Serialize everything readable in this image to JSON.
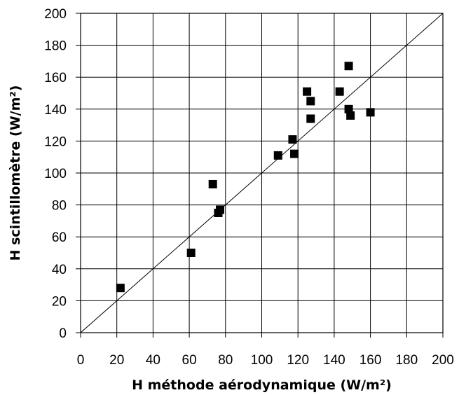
{
  "chart_data": {
    "type": "scatter",
    "xlabel": "H méthode aérodynamique (W/m²)",
    "ylabel": "H scintillomètre (W/m²)",
    "xlim": [
      0,
      200
    ],
    "ylim": [
      0,
      200
    ],
    "x_ticks": [
      "0",
      "20",
      "40",
      "60",
      "80",
      "100",
      "120",
      "140",
      "160",
      "180",
      "200"
    ],
    "y_ticks": [
      "0",
      "20",
      "40",
      "60",
      "80",
      "100",
      "120",
      "140",
      "160",
      "180",
      "200"
    ],
    "grid": true,
    "reference_line": {
      "type": "1:1",
      "from": [
        0,
        0
      ],
      "to": [
        200,
        200
      ]
    },
    "marker": {
      "shape": "square",
      "color": "#000000"
    },
    "points": [
      {
        "x": 22,
        "y": 28
      },
      {
        "x": 61,
        "y": 50
      },
      {
        "x": 73,
        "y": 93
      },
      {
        "x": 76,
        "y": 75
      },
      {
        "x": 77,
        "y": 77
      },
      {
        "x": 109,
        "y": 111
      },
      {
        "x": 117,
        "y": 121
      },
      {
        "x": 118,
        "y": 112
      },
      {
        "x": 125,
        "y": 151
      },
      {
        "x": 127,
        "y": 145
      },
      {
        "x": 127,
        "y": 134
      },
      {
        "x": 143,
        "y": 151
      },
      {
        "x": 148,
        "y": 167
      },
      {
        "x": 148,
        "y": 140
      },
      {
        "x": 149,
        "y": 136
      },
      {
        "x": 160,
        "y": 138
      }
    ]
  }
}
